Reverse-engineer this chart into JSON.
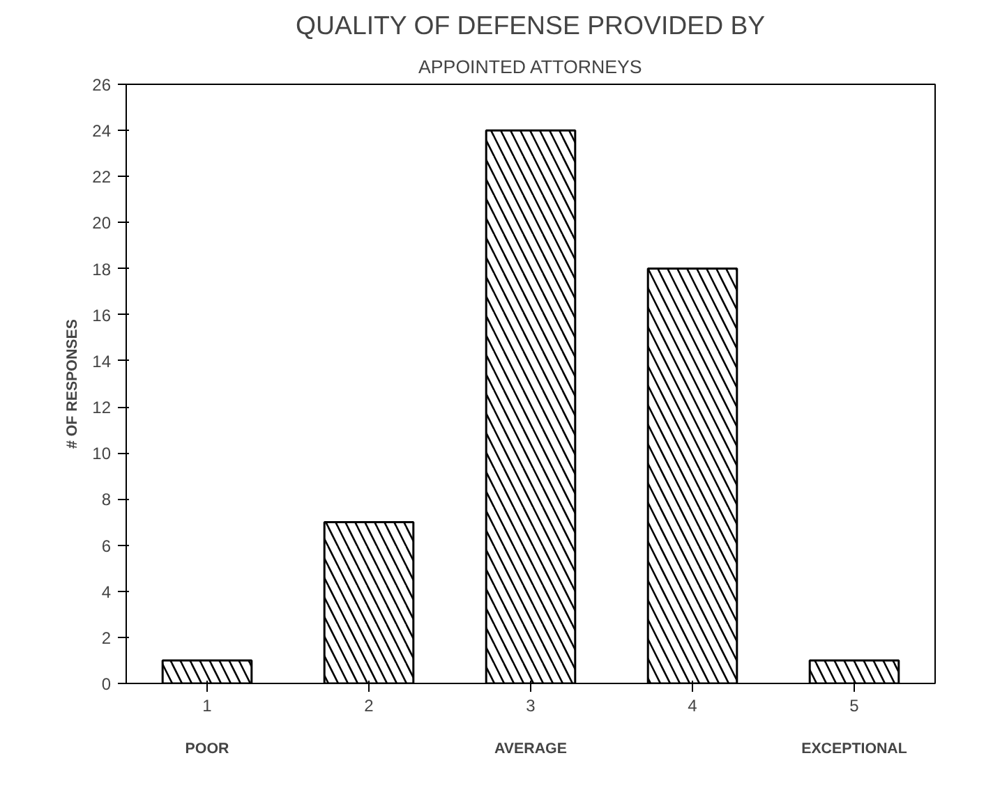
{
  "chart_data": {
    "type": "bar",
    "title": "QUALITY OF DEFENSE PROVIDED BY",
    "subtitle": "APPOINTED ATTORNEYS",
    "ylabel": "# OF RESPONSES",
    "categories": [
      "1",
      "2",
      "3",
      "4",
      "5"
    ],
    "values": [
      1,
      7,
      24,
      18,
      1
    ],
    "color": "#000000",
    "ylim": [
      0,
      26
    ],
    "yticks": [
      0,
      2,
      4,
      6,
      8,
      10,
      12,
      14,
      16,
      18,
      20,
      22,
      24,
      26
    ],
    "annotations": [
      "POOR",
      "AVERAGE",
      "EXCEPTIONAL"
    ],
    "grid": false
  }
}
